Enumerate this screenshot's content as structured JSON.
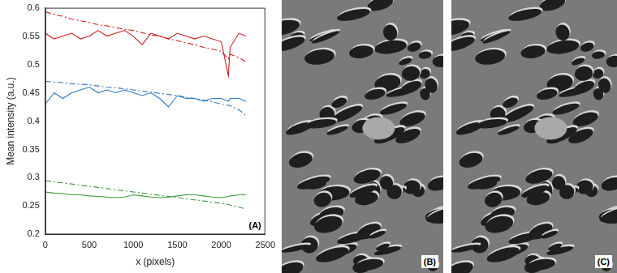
{
  "chart_data": {
    "type": "line",
    "annotation": "(A)",
    "x_label": "x (pixels)",
    "y_label": "Mean intensity (a.u.)",
    "x": [
      0,
      100,
      200,
      300,
      400,
      500,
      600,
      700,
      800,
      900,
      1000,
      1100,
      1200,
      1300,
      1400,
      1500,
      1600,
      1700,
      1800,
      1900,
      2000,
      2080,
      2100,
      2200,
      2280
    ],
    "series": [
      {
        "color": "#cc2020",
        "line_style": "solid",
        "values": [
          0.555,
          0.545,
          0.55,
          0.555,
          0.545,
          0.55,
          0.56,
          0.55,
          0.555,
          0.56,
          0.55,
          0.535,
          0.555,
          0.55,
          0.545,
          0.555,
          0.55,
          0.545,
          0.55,
          0.545,
          0.54,
          0.48,
          0.53,
          0.555,
          0.55
        ]
      },
      {
        "color": "#cc2020",
        "line_style": "dashdot",
        "values": [
          0.593,
          0.588,
          0.585,
          0.58,
          0.577,
          0.574,
          0.57,
          0.568,
          0.565,
          0.562,
          0.56,
          0.556,
          0.552,
          0.55,
          0.545,
          0.542,
          0.538,
          0.535,
          0.53,
          0.527,
          0.523,
          0.51,
          0.518,
          0.512,
          0.505
        ]
      },
      {
        "color": "#2f78c0",
        "line_style": "solid",
        "values": [
          0.43,
          0.45,
          0.44,
          0.45,
          0.455,
          0.46,
          0.45,
          0.455,
          0.45,
          0.455,
          0.45,
          0.445,
          0.45,
          0.44,
          0.425,
          0.445,
          0.44,
          0.44,
          0.435,
          0.44,
          0.44,
          0.435,
          0.44,
          0.44,
          0.435
        ]
      },
      {
        "color": "#2f78c0",
        "line_style": "dashdot",
        "values": [
          0.47,
          0.469,
          0.468,
          0.466,
          0.465,
          0.464,
          0.462,
          0.46,
          0.459,
          0.457,
          0.455,
          0.453,
          0.451,
          0.449,
          0.447,
          0.445,
          0.442,
          0.44,
          0.437,
          0.434,
          0.43,
          0.428,
          0.427,
          0.42,
          0.41
        ]
      },
      {
        "color": "#3a9a3a",
        "line_style": "solid",
        "values": [
          0.275,
          0.273,
          0.272,
          0.27,
          0.27,
          0.268,
          0.267,
          0.266,
          0.265,
          0.266,
          0.27,
          0.268,
          0.266,
          0.265,
          0.266,
          0.268,
          0.27,
          0.27,
          0.268,
          0.266,
          0.265,
          0.267,
          0.268,
          0.27,
          0.27
        ]
      },
      {
        "color": "#3a9a3a",
        "line_style": "dashdot",
        "values": [
          0.295,
          0.293,
          0.291,
          0.289,
          0.287,
          0.285,
          0.283,
          0.281,
          0.279,
          0.277,
          0.275,
          0.273,
          0.271,
          0.269,
          0.267,
          0.265,
          0.263,
          0.261,
          0.259,
          0.257,
          0.255,
          0.253,
          0.252,
          0.248,
          0.245
        ]
      }
    ],
    "xlim": [
      0,
      2500
    ],
    "xticks": [
      0,
      500,
      1000,
      1500,
      2000,
      2500
    ],
    "ylim": [
      0.2,
      0.6
    ],
    "yticks": [
      0.2,
      0.25,
      0.3,
      0.35,
      0.4,
      0.45,
      0.5,
      0.55,
      0.6
    ],
    "grid": false
  },
  "panels": [
    {
      "label": "(B)"
    },
    {
      "label": "(C)"
    }
  ]
}
